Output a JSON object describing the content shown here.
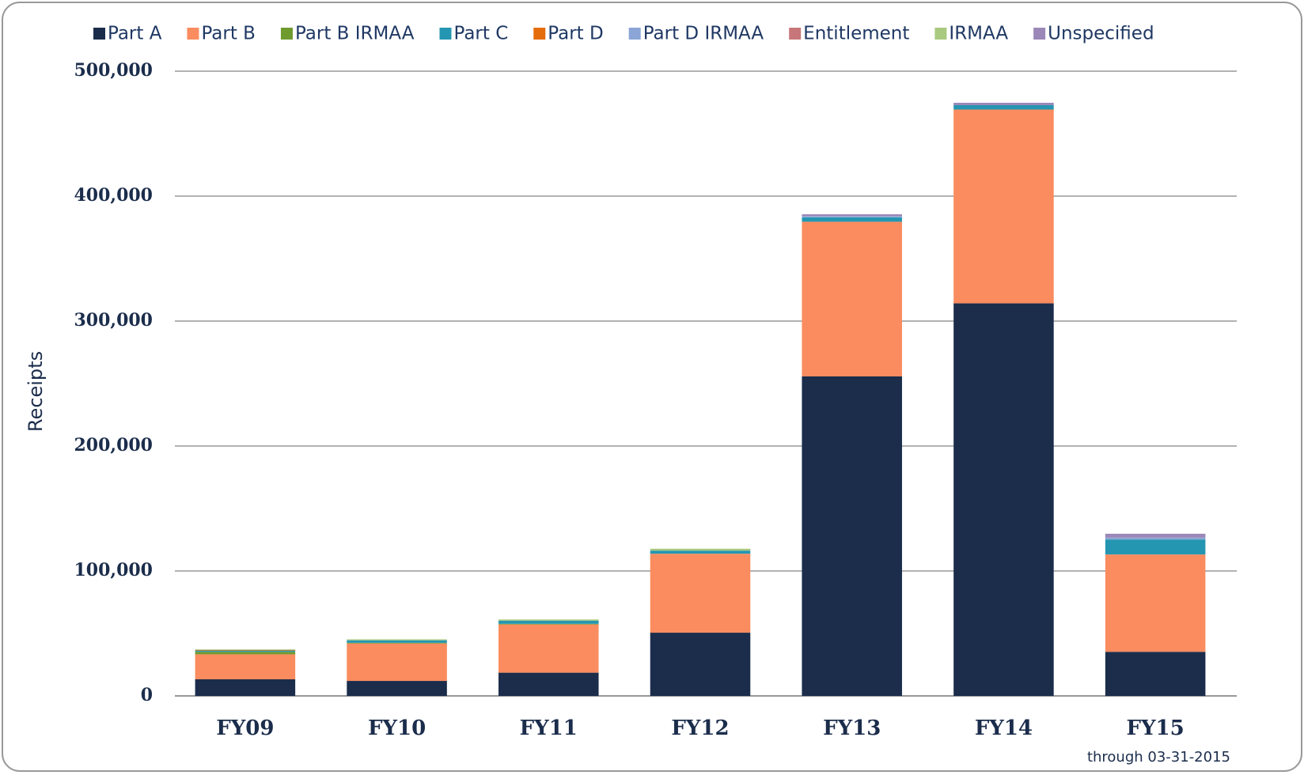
{
  "chart_data": {
    "type": "stacked_bar",
    "y_label": "Receipts",
    "annotation": "through 03-31-2015",
    "categories": [
      "FY09",
      "FY10",
      "FY11",
      "FY12",
      "FY13",
      "FY14",
      "FY15"
    ],
    "series": [
      {
        "name": "Part A",
        "color": "#1b2d4b",
        "values": [
          13300,
          12000,
          18600,
          50600,
          255700,
          314200,
          35300
        ]
      },
      {
        "name": "Part B",
        "color": "#fa8c5f",
        "values": [
          20000,
          30000,
          38600,
          63200,
          123800,
          155100,
          77900
        ]
      },
      {
        "name": "Part B IRMAA",
        "color": "#6f9a2e",
        "values": [
          2000,
          500,
          500,
          0,
          0,
          0,
          0
        ]
      },
      {
        "name": "Part C",
        "color": "#2596b1",
        "values": [
          1000,
          2000,
          2500,
          2500,
          3500,
          3500,
          12000
        ]
      },
      {
        "name": "Part D",
        "color": "#e46c0a",
        "values": [
          500,
          0,
          0,
          0,
          0,
          0,
          0
        ]
      },
      {
        "name": "Part D IRMAA",
        "color": "#8aa5d6",
        "values": [
          0,
          0,
          0,
          0,
          1000,
          0,
          1500
        ]
      },
      {
        "name": "Entitlement",
        "color": "#c7777a",
        "values": [
          0,
          0,
          0,
          0,
          0,
          0,
          0
        ]
      },
      {
        "name": "IRMAA",
        "color": "#a9c97f",
        "values": [
          500,
          800,
          1000,
          1500,
          0,
          0,
          0
        ]
      },
      {
        "name": "Unspecified",
        "color": "#9b87b8",
        "values": [
          0,
          0,
          0,
          0,
          1500,
          1900,
          3100
        ]
      }
    ],
    "ylim": [
      0,
      500000
    ],
    "yticks": [
      0,
      {
        "value": 100000,
        "label": "100,000"
      },
      {
        "value": 200000,
        "label": "200,000"
      },
      {
        "value": 300000,
        "label": "300,000"
      },
      {
        "value": 400000,
        "label": "400,000"
      },
      {
        "value": 500000,
        "label": "500,000"
      }
    ],
    "grid": true,
    "legend": "top"
  }
}
